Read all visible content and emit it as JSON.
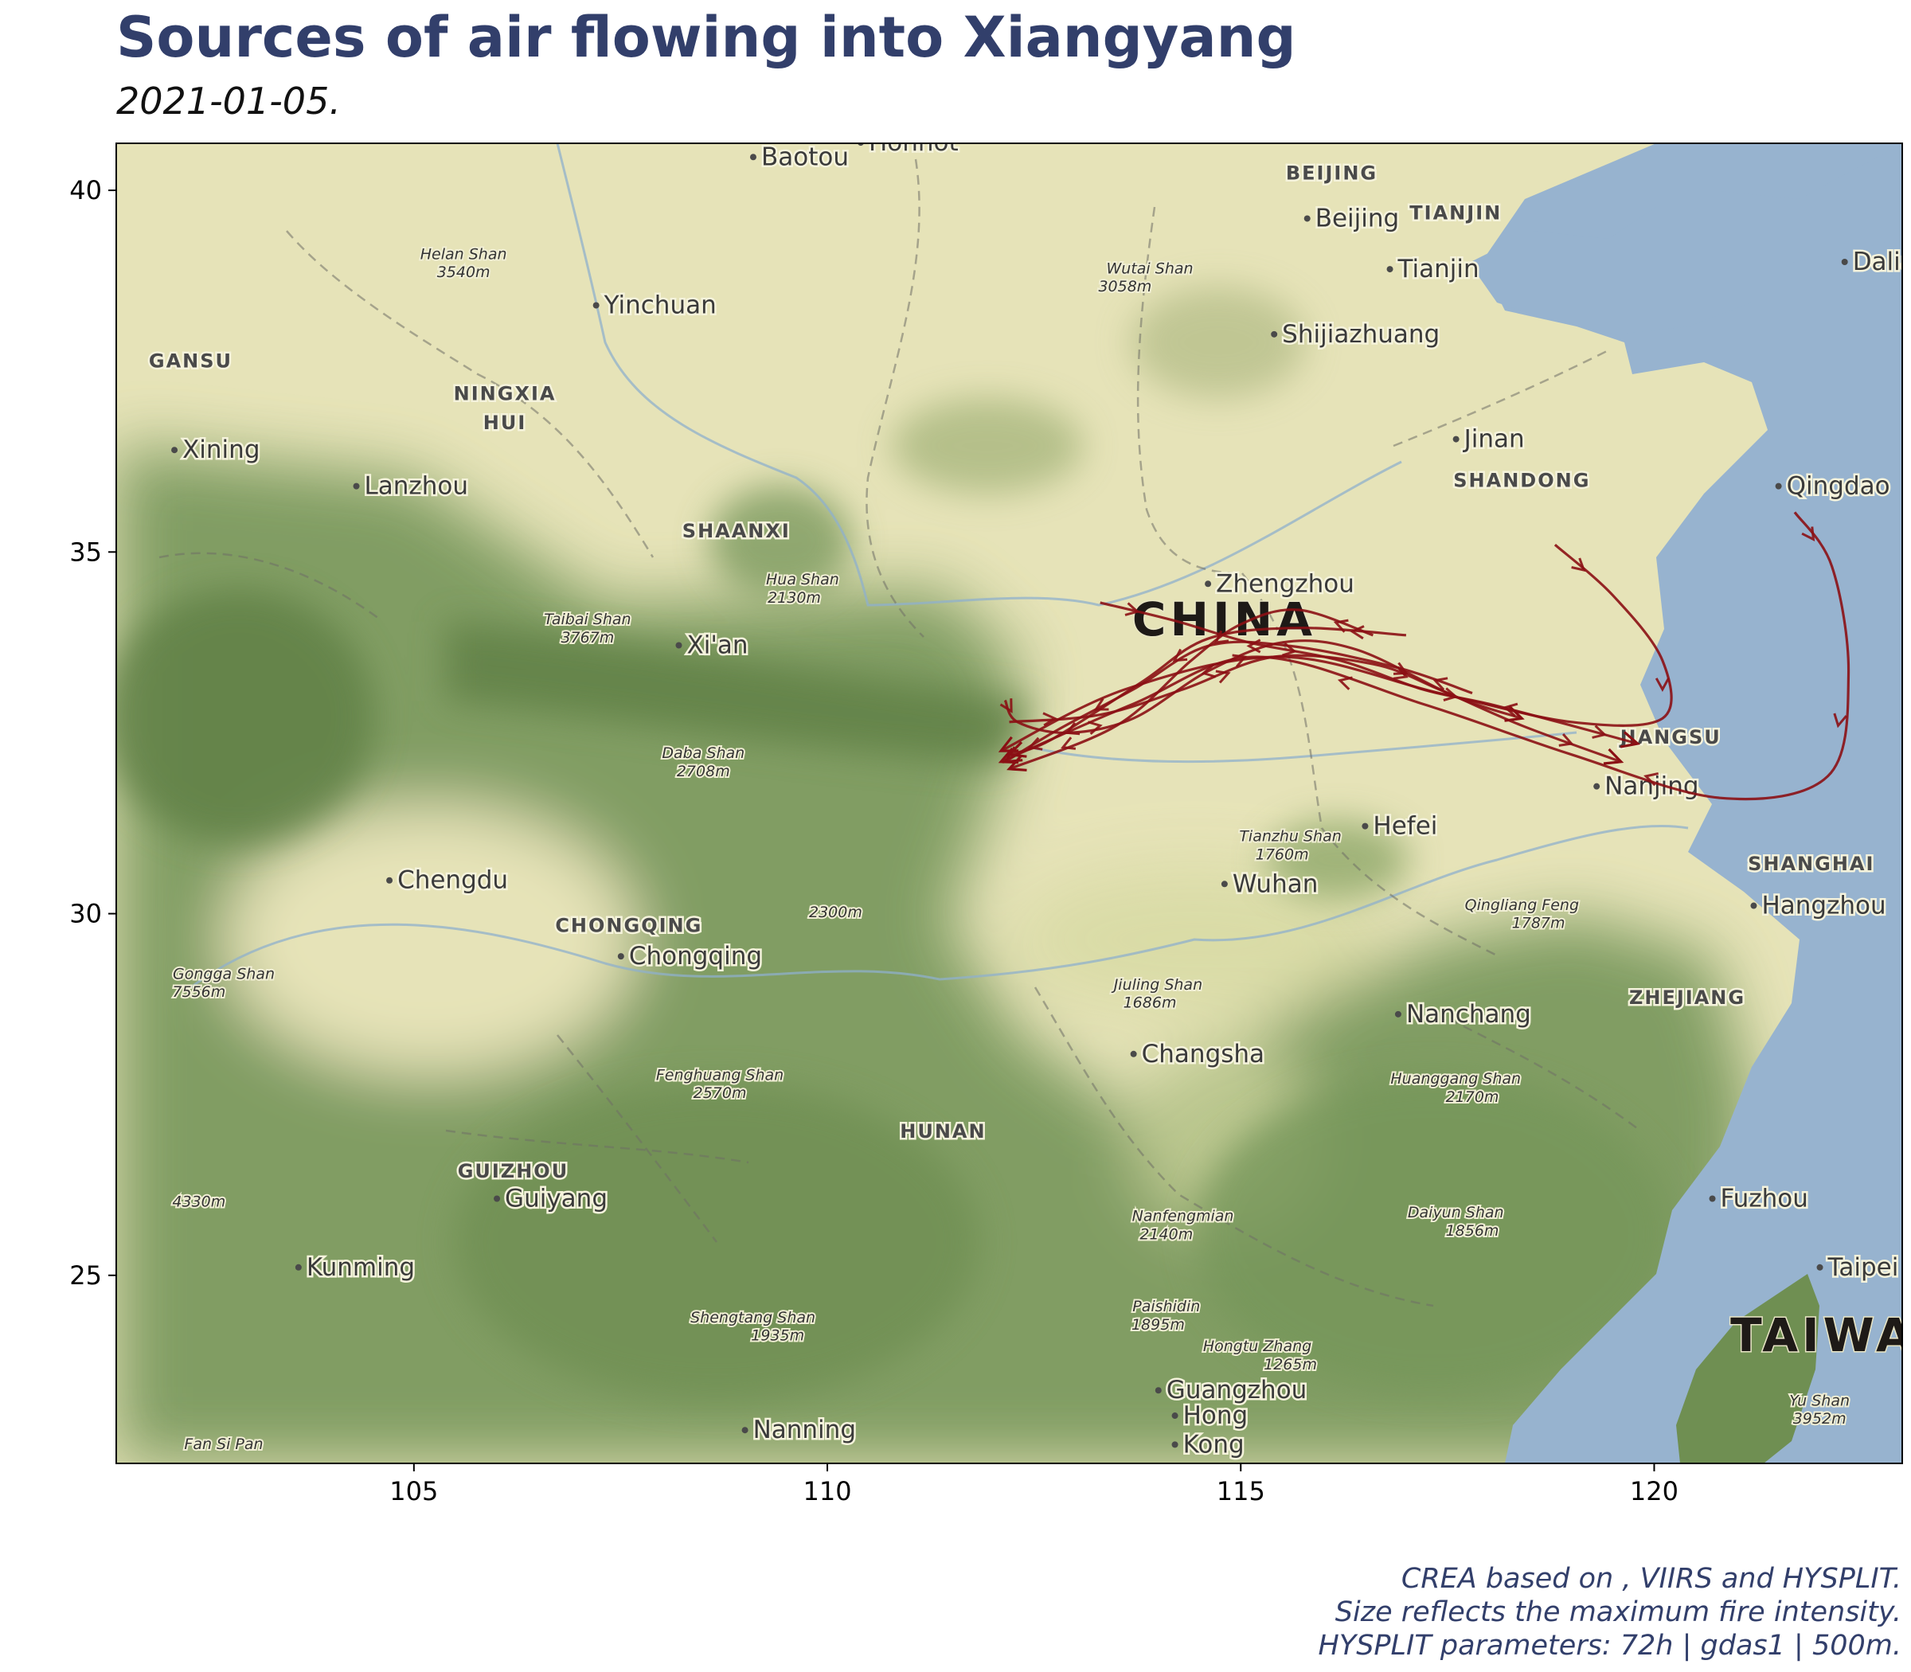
{
  "title": "Sources of air flowing into Xiangyang",
  "subtitle": "2021-01-05.",
  "caption": [
    "CREA based on , VIIRS and HYSPLIT.",
    "Size reflects the maximum fire intensity.",
    "HYSPLIT parameters: 72h | gdas1 | 500m."
  ],
  "colors": {
    "trajectory": "#8b0f14",
    "sea": "#97b3cf",
    "plain": "#e6e3b8",
    "mountain": "#7c9a5e",
    "title": "#323f6b"
  },
  "map": {
    "xlim": [
      101.4,
      123.0
    ],
    "ylim": [
      22.4,
      40.65
    ],
    "xticks": [
      105,
      110,
      115,
      120
    ],
    "yticks": [
      25,
      30,
      35,
      40
    ],
    "labels": [
      {
        "text": "Baotou",
        "lon": 109.2,
        "lat": 40.35,
        "kind": "city"
      },
      {
        "text": "Hohhot",
        "lon": 110.5,
        "lat": 40.55,
        "kind": "city"
      },
      {
        "text": "BEIJING",
        "lon": 116.1,
        "lat": 40.15,
        "kind": "region"
      },
      {
        "text": "Beijing",
        "lon": 115.9,
        "lat": 39.5,
        "kind": "city"
      },
      {
        "text": "TIANJIN",
        "lon": 117.6,
        "lat": 39.6,
        "kind": "region"
      },
      {
        "text": "Tianjin",
        "lon": 116.9,
        "lat": 38.8,
        "kind": "city"
      },
      {
        "text": "Dalian",
        "lon": 122.4,
        "lat": 38.9,
        "kind": "city"
      },
      {
        "text": "Helan Shan",
        "lon": 105.6,
        "lat": 39.05,
        "kind": "peak"
      },
      {
        "text": "3540m",
        "lon": 105.6,
        "lat": 38.8,
        "kind": "peak"
      },
      {
        "text": "Yinchuan",
        "lon": 107.3,
        "lat": 38.3,
        "kind": "city"
      },
      {
        "text": "Wutai Shan",
        "lon": 113.9,
        "lat": 38.85,
        "kind": "peak"
      },
      {
        "text": "3058m",
        "lon": 113.6,
        "lat": 38.6,
        "kind": "peak"
      },
      {
        "text": "Shijiazhuang",
        "lon": 115.5,
        "lat": 37.9,
        "kind": "city"
      },
      {
        "text": "GANSU",
        "lon": 102.3,
        "lat": 37.55,
        "kind": "region"
      },
      {
        "text": "NINGXIA",
        "lon": 106.1,
        "lat": 37.1,
        "kind": "region"
      },
      {
        "text": "HUI",
        "lon": 106.1,
        "lat": 36.7,
        "kind": "region"
      },
      {
        "text": "Xining",
        "lon": 102.2,
        "lat": 36.3,
        "kind": "city"
      },
      {
        "text": "Lanzhou",
        "lon": 104.4,
        "lat": 35.8,
        "kind": "city"
      },
      {
        "text": "Jinan",
        "lon": 117.7,
        "lat": 36.45,
        "kind": "city"
      },
      {
        "text": "SHANDONG",
        "lon": 118.4,
        "lat": 35.9,
        "kind": "region"
      },
      {
        "text": "Qingdao",
        "lon": 121.6,
        "lat": 35.8,
        "kind": "city"
      },
      {
        "text": "SHAANXI",
        "lon": 108.9,
        "lat": 35.2,
        "kind": "region"
      },
      {
        "text": "Hua Shan",
        "lon": 109.7,
        "lat": 34.55,
        "kind": "peak"
      },
      {
        "text": "2130m",
        "lon": 109.6,
        "lat": 34.3,
        "kind": "peak"
      },
      {
        "text": "Zhengzhou",
        "lon": 114.7,
        "lat": 34.45,
        "kind": "city"
      },
      {
        "text": "CHINA",
        "lon": 114.8,
        "lat": 33.85,
        "kind": "country"
      },
      {
        "text": "Taibai Shan",
        "lon": 107.1,
        "lat": 34.0,
        "kind": "peak"
      },
      {
        "text": "3767m",
        "lon": 107.1,
        "lat": 33.75,
        "kind": "peak"
      },
      {
        "text": "Xi'an",
        "lon": 108.3,
        "lat": 33.6,
        "kind": "city"
      },
      {
        "text": "Daba Shan",
        "lon": 108.5,
        "lat": 32.15,
        "kind": "peak"
      },
      {
        "text": "2708m",
        "lon": 108.5,
        "lat": 31.9,
        "kind": "peak"
      },
      {
        "text": "JIANGSU",
        "lon": 120.2,
        "lat": 32.35,
        "kind": "region"
      },
      {
        "text": "Nanjing",
        "lon": 119.4,
        "lat": 31.65,
        "kind": "city"
      },
      {
        "text": "Tianzhu Shan",
        "lon": 115.6,
        "lat": 31.0,
        "kind": "peak"
      },
      {
        "text": "1760m",
        "lon": 115.5,
        "lat": 30.75,
        "kind": "peak"
      },
      {
        "text": "Hefei",
        "lon": 116.6,
        "lat": 31.1,
        "kind": "city"
      },
      {
        "text": "Chengdu",
        "lon": 104.8,
        "lat": 30.35,
        "kind": "city"
      },
      {
        "text": "SHANGHAI",
        "lon": 121.9,
        "lat": 30.6,
        "kind": "region"
      },
      {
        "text": "Wuhan",
        "lon": 114.9,
        "lat": 30.3,
        "kind": "city"
      },
      {
        "text": "Hangzhou",
        "lon": 121.3,
        "lat": 30.0,
        "kind": "city"
      },
      {
        "text": "Qingliang Feng",
        "lon": 118.4,
        "lat": 30.05,
        "kind": "peak"
      },
      {
        "text": "1787m",
        "lon": 118.6,
        "lat": 29.8,
        "kind": "peak"
      },
      {
        "text": "CHONGQING",
        "lon": 107.6,
        "lat": 29.75,
        "kind": "region"
      },
      {
        "text": "2300m",
        "lon": 110.1,
        "lat": 29.95,
        "kind": "peak"
      },
      {
        "text": "Chongqing",
        "lon": 107.6,
        "lat": 29.3,
        "kind": "city"
      },
      {
        "text": "Gongga Shan",
        "lon": 102.7,
        "lat": 29.1,
        "kind": "peak"
      },
      {
        "text": "7556m",
        "lon": 102.4,
        "lat": 28.85,
        "kind": "peak"
      },
      {
        "text": "Jiuling Shan",
        "lon": 114.0,
        "lat": 28.95,
        "kind": "peak"
      },
      {
        "text": "1686m",
        "lon": 113.9,
        "lat": 28.7,
        "kind": "peak"
      },
      {
        "text": "ZHEJIANG",
        "lon": 120.4,
        "lat": 28.75,
        "kind": "region"
      },
      {
        "text": "Nanchang",
        "lon": 117.0,
        "lat": 28.5,
        "kind": "city"
      },
      {
        "text": "Changsha",
        "lon": 113.8,
        "lat": 27.95,
        "kind": "city"
      },
      {
        "text": "Fenghuang Shan",
        "lon": 108.7,
        "lat": 27.7,
        "kind": "peak"
      },
      {
        "text": "2570m",
        "lon": 108.7,
        "lat": 27.45,
        "kind": "peak"
      },
      {
        "text": "Huanggang Shan",
        "lon": 117.6,
        "lat": 27.65,
        "kind": "peak"
      },
      {
        "text": "2170m",
        "lon": 117.8,
        "lat": 27.4,
        "kind": "peak"
      },
      {
        "text": "HUNAN",
        "lon": 111.4,
        "lat": 26.9,
        "kind": "region"
      },
      {
        "text": "GUIZHOU",
        "lon": 106.2,
        "lat": 26.35,
        "kind": "region"
      },
      {
        "text": "Guiyang",
        "lon": 106.1,
        "lat": 25.95,
        "kind": "city"
      },
      {
        "text": "4330m",
        "lon": 102.4,
        "lat": 25.95,
        "kind": "peak"
      },
      {
        "text": "Nanfengmian",
        "lon": 114.3,
        "lat": 25.75,
        "kind": "peak"
      },
      {
        "text": "2140m",
        "lon": 114.1,
        "lat": 25.5,
        "kind": "peak"
      },
      {
        "text": "Daiyun Shan",
        "lon": 117.6,
        "lat": 25.8,
        "kind": "peak"
      },
      {
        "text": "1856m",
        "lon": 117.8,
        "lat": 25.55,
        "kind": "peak"
      },
      {
        "text": "Fuzhou",
        "lon": 120.8,
        "lat": 25.95,
        "kind": "city"
      },
      {
        "text": "Kunming",
        "lon": 103.7,
        "lat": 25.0,
        "kind": "city"
      },
      {
        "text": "Taipei",
        "lon": 122.1,
        "lat": 25.0,
        "kind": "city"
      },
      {
        "text": "Paishidin",
        "lon": 114.1,
        "lat": 24.5,
        "kind": "peak"
      },
      {
        "text": "1895m",
        "lon": 114.0,
        "lat": 24.25,
        "kind": "peak"
      },
      {
        "text": "Shengtang Shan",
        "lon": 109.1,
        "lat": 24.35,
        "kind": "peak"
      },
      {
        "text": "1935m",
        "lon": 109.4,
        "lat": 24.1,
        "kind": "peak"
      },
      {
        "text": "Hongtu Zhang",
        "lon": 115.2,
        "lat": 23.95,
        "kind": "peak"
      },
      {
        "text": "1265m",
        "lon": 115.6,
        "lat": 23.7,
        "kind": "peak"
      },
      {
        "text": "TAIWAN",
        "lon": 122.3,
        "lat": 23.95,
        "kind": "country"
      },
      {
        "text": "Guangzhou",
        "lon": 114.1,
        "lat": 23.3,
        "kind": "city"
      },
      {
        "text": "Hong",
        "lon": 114.3,
        "lat": 22.95,
        "kind": "city"
      },
      {
        "text": "Kong",
        "lon": 114.3,
        "lat": 22.55,
        "kind": "city"
      },
      {
        "text": "Nanning",
        "lon": 109.1,
        "lat": 22.75,
        "kind": "city"
      },
      {
        "text": "Fan Si Pan",
        "lon": 102.7,
        "lat": 22.6,
        "kind": "peak"
      },
      {
        "text": "Yu Shan",
        "lon": 122.0,
        "lat": 23.2,
        "kind": "peak"
      },
      {
        "text": "3952m",
        "lon": 122.0,
        "lat": 22.95,
        "kind": "peak"
      }
    ]
  },
  "chart_data": {
    "type": "trajectory-map",
    "xlim": [
      101.4,
      123.0
    ],
    "ylim": [
      22.4,
      40.65
    ],
    "series": [
      {
        "points": [
          [
            121.7,
            35.55
          ],
          [
            122.15,
            34.8
          ],
          [
            122.35,
            33.3
          ],
          [
            122.1,
            31.9
          ],
          [
            120.8,
            31.6
          ],
          [
            119.0,
            32.2
          ],
          [
            117.2,
            32.9
          ],
          [
            115.2,
            33.55
          ],
          [
            113.7,
            32.9
          ],
          [
            112.1,
            32.1
          ]
        ]
      },
      {
        "points": [
          [
            118.8,
            35.1
          ],
          [
            119.5,
            34.4
          ],
          [
            120.1,
            33.5
          ],
          [
            120.1,
            32.7
          ],
          [
            119.0,
            32.65
          ],
          [
            117.4,
            33.05
          ],
          [
            115.5,
            33.55
          ],
          [
            113.6,
            33.1
          ],
          [
            112.1,
            32.25
          ]
        ]
      },
      {
        "points": [
          [
            113.3,
            34.3
          ],
          [
            114.2,
            34.05
          ],
          [
            115.1,
            33.75
          ],
          [
            116.2,
            33.5
          ],
          [
            117.2,
            33.1
          ],
          [
            118.0,
            32.9
          ],
          [
            119.0,
            32.6
          ],
          [
            119.8,
            32.35
          ]
        ]
      },
      {
        "points": [
          [
            112.2,
            32.65
          ],
          [
            113.3,
            32.75
          ],
          [
            114.3,
            33.1
          ],
          [
            115.4,
            33.55
          ],
          [
            116.6,
            33.45
          ],
          [
            117.4,
            33.1
          ],
          [
            118.4,
            32.6
          ],
          [
            119.6,
            32.1
          ]
        ]
      },
      {
        "points": [
          [
            117.8,
            33.05
          ],
          [
            116.9,
            33.4
          ],
          [
            115.6,
            33.7
          ],
          [
            114.6,
            33.7
          ],
          [
            113.7,
            33.1
          ],
          [
            112.8,
            32.55
          ],
          [
            112.15,
            32.1
          ]
        ]
      },
      {
        "points": [
          [
            117.0,
            33.85
          ],
          [
            115.7,
            33.95
          ],
          [
            114.6,
            33.8
          ],
          [
            113.8,
            33.2
          ],
          [
            112.7,
            32.4
          ],
          [
            112.2,
            32.2
          ]
        ]
      },
      {
        "points": [
          [
            112.15,
            32.95
          ],
          [
            112.3,
            32.65
          ],
          [
            112.9,
            32.5
          ],
          [
            113.7,
            32.7
          ],
          [
            114.6,
            33.35
          ],
          [
            115.5,
            33.75
          ],
          [
            116.4,
            33.65
          ],
          [
            117.6,
            33.0
          ],
          [
            118.4,
            32.7
          ]
        ]
      },
      {
        "points": [
          [
            116.6,
            33.85
          ],
          [
            115.7,
            34.2
          ],
          [
            115.0,
            34.0
          ],
          [
            114.4,
            33.5
          ],
          [
            113.5,
            32.6
          ],
          [
            112.2,
            32.0
          ]
        ]
      }
    ]
  }
}
